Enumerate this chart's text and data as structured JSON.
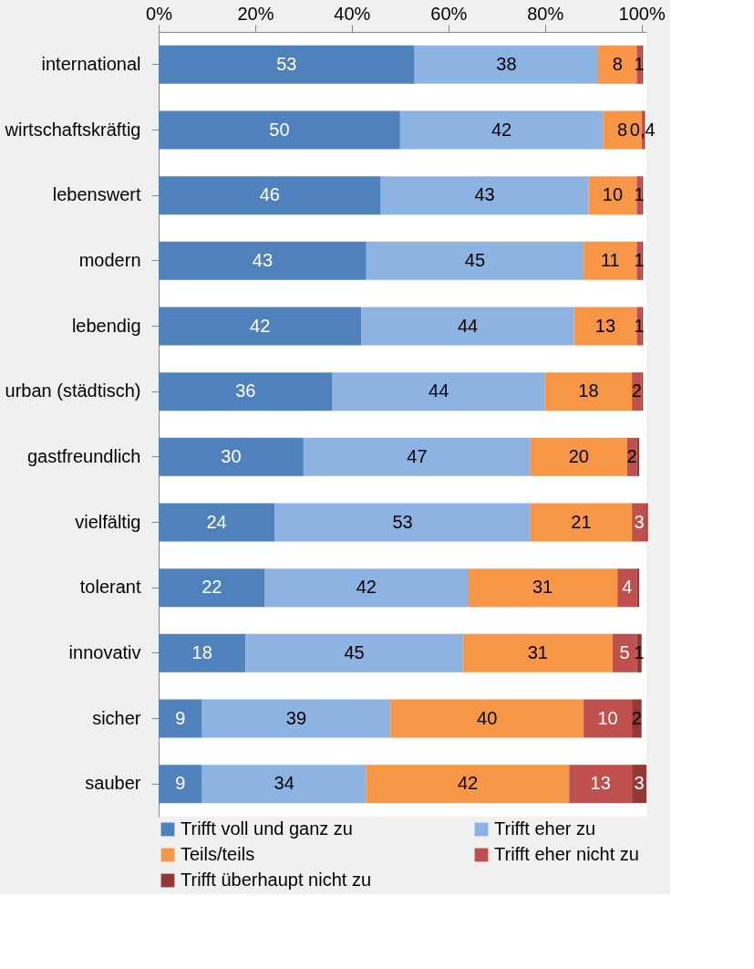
{
  "chart_data": {
    "type": "bar",
    "orientation": "horizontal",
    "stacked": true,
    "categories": [
      "international",
      "wirtschaftskräftig",
      "lebenswert",
      "modern",
      "lebendig",
      "urban (städtisch)",
      "gastfreundlich",
      "vielfältig",
      "tolerant",
      "innovativ",
      "sicher",
      "sauber"
    ],
    "series": [
      {
        "name": "Trifft voll und ganz zu",
        "color": "#4f81bd",
        "values": [
          53,
          50,
          46,
          43,
          42,
          36,
          30,
          24,
          22,
          18,
          9,
          9
        ],
        "value_labels": [
          "53",
          "50",
          "46",
          "43",
          "42",
          "36",
          "30",
          "24",
          "22",
          "18",
          "9",
          "9"
        ]
      },
      {
        "name": "Trifft eher zu",
        "color": "#8db3e2",
        "values": [
          38,
          42,
          43,
          45,
          44,
          44,
          47,
          53,
          42,
          45,
          39,
          34
        ],
        "value_labels": [
          "38",
          "42",
          "43",
          "45",
          "44",
          "44",
          "47",
          "53",
          "42",
          "45",
          "39",
          "34"
        ]
      },
      {
        "name": "Teils/teils",
        "color": "#f79646",
        "values": [
          8,
          8,
          10,
          11,
          13,
          18,
          20,
          21,
          31,
          31,
          40,
          42
        ],
        "value_labels": [
          "8",
          "8",
          "10",
          "11",
          "13",
          "18",
          "20",
          "21",
          "31",
          "31",
          "40",
          "42"
        ]
      },
      {
        "name": "Trifft eher nicht zu",
        "color": "#c0504d",
        "values": [
          1,
          0.4,
          1,
          1,
          1,
          2,
          2,
          3,
          4,
          5,
          10,
          13
        ],
        "value_labels": [
          "1",
          "0,4",
          "1",
          "1",
          "1",
          "2",
          "2",
          "3",
          "4",
          "5",
          "10",
          "13"
        ]
      },
      {
        "name": "Trifft überhaupt nicht zu",
        "color": "#953735",
        "values": [
          0.3,
          0.3,
          0.3,
          0.3,
          0.3,
          0.3,
          0.5,
          0.3,
          0.5,
          1,
          2,
          3
        ],
        "value_labels": [
          null,
          null,
          null,
          null,
          null,
          null,
          null,
          null,
          null,
          "1",
          "2",
          "3"
        ]
      }
    ],
    "xlim": [
      0,
      101
    ],
    "xticks": [
      {
        "value": 0,
        "label": "0%"
      },
      {
        "value": 20,
        "label": "20%"
      },
      {
        "value": 40,
        "label": "40%"
      },
      {
        "value": 60,
        "label": "60%"
      },
      {
        "value": 80,
        "label": "80%"
      },
      {
        "value": 100,
        "label": "100%"
      }
    ],
    "data_labels": false,
    "grid": false,
    "legend": "bottom"
  }
}
